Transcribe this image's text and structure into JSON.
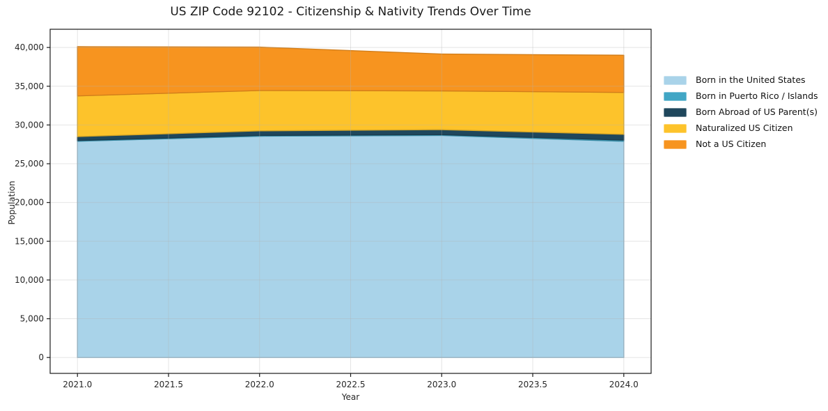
{
  "chart_data": {
    "type": "area",
    "stacked": true,
    "title": "US ZIP Code 92102 - Citizenship & Nativity Trends Over Time",
    "xlabel": "Year",
    "ylabel": "Population",
    "x": [
      2021,
      2022,
      2023,
      2024
    ],
    "series": [
      {
        "id": "born-us",
        "name": "Born in the United States",
        "color": "#a9d3e9",
        "values": [
          27900,
          28550,
          28650,
          27900
        ]
      },
      {
        "id": "born-pr-islands",
        "name": "Born in Puerto Rico / Islands",
        "color": "#41a6c5",
        "values": [
          100,
          100,
          100,
          150
        ]
      },
      {
        "id": "born-abroad",
        "name": "Born Abroad of US Parent(s)",
        "color": "#1f475c",
        "values": [
          500,
          600,
          650,
          750
        ]
      },
      {
        "id": "naturalized",
        "name": "Naturalized US Citizen",
        "color": "#fdc32b",
        "values": [
          5250,
          5200,
          5000,
          5400
        ]
      },
      {
        "id": "not-citizen",
        "name": "Not a US Citizen",
        "color": "#f7941f",
        "values": [
          6350,
          5600,
          4750,
          4800
        ]
      }
    ],
    "totals": [
      40100,
      40050,
      39150,
      39000
    ],
    "xlim": [
      2020.85,
      2024.15
    ],
    "ylim": [
      -2050,
      42350
    ],
    "x_ticks": [
      {
        "v": 2021.0,
        "label": "2021.0"
      },
      {
        "v": 2021.5,
        "label": "2021.5"
      },
      {
        "v": 2022.0,
        "label": "2022.0"
      },
      {
        "v": 2022.5,
        "label": "2022.5"
      },
      {
        "v": 2023.0,
        "label": "2023.0"
      },
      {
        "v": 2023.5,
        "label": "2023.5"
      },
      {
        "v": 2024.0,
        "label": "2024.0"
      }
    ],
    "y_ticks": [
      {
        "v": 0,
        "label": "0"
      },
      {
        "v": 5000,
        "label": "5,000"
      },
      {
        "v": 10000,
        "label": "10,000"
      },
      {
        "v": 15000,
        "label": "15,000"
      },
      {
        "v": 20000,
        "label": "20,000"
      },
      {
        "v": 25000,
        "label": "25,000"
      },
      {
        "v": 30000,
        "label": "30,000"
      },
      {
        "v": 35000,
        "label": "35,000"
      },
      {
        "v": 40000,
        "label": "40,000"
      }
    ],
    "grid": true,
    "legend_position": "center-right-outside",
    "frame_color": "#1a1a1a",
    "grid_color": "rgba(178,178,178,0.35)"
  }
}
